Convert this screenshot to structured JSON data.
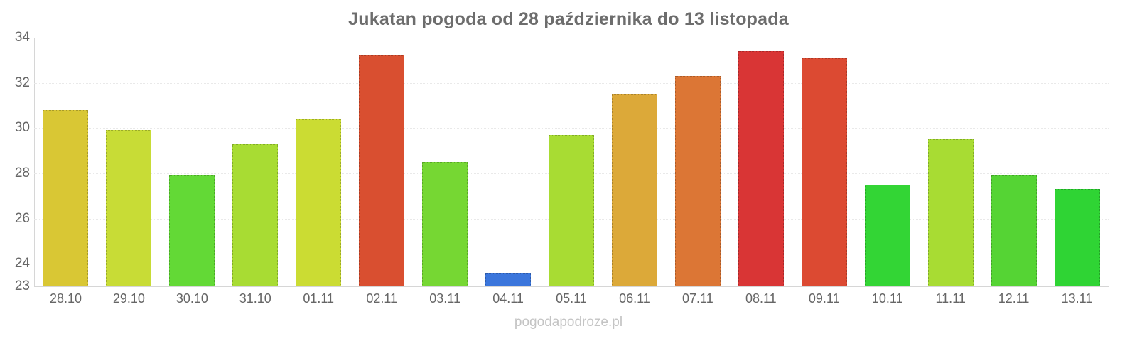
{
  "title": "Jukatan pogoda od 28 października do 13 listopada",
  "watermark": "pogodapodroze.pl",
  "chart_data": {
    "type": "bar",
    "title": "Jukatan pogoda od 28 października do 13 listopada",
    "categories": [
      "28.10",
      "29.10",
      "30.10",
      "31.10",
      "01.11",
      "02.11",
      "03.11",
      "04.11",
      "05.11",
      "06.11",
      "07.11",
      "08.11",
      "09.11",
      "10.11",
      "11.11",
      "12.11",
      "13.11"
    ],
    "values": [
      30.8,
      29.9,
      27.9,
      29.3,
      30.4,
      33.2,
      28.5,
      23.6,
      29.7,
      31.5,
      32.3,
      33.4,
      33.1,
      27.5,
      29.5,
      27.9,
      27.3
    ],
    "bar_colors": [
      "#d9c734",
      "#c8dc36",
      "#63d936",
      "#a8dc33",
      "#cbdc33",
      "#d94f30",
      "#76d733",
      "#3b76dc",
      "#a8dc33",
      "#dca939",
      "#dc7635",
      "#d93535",
      "#dc4a32",
      "#33d535",
      "#a8dc33",
      "#55d434",
      "#2fd434"
    ],
    "xlabel": "",
    "ylabel": "",
    "ylim": [
      23,
      34
    ],
    "yticks": [
      23,
      24,
      26,
      28,
      30,
      32,
      34
    ],
    "grid": true,
    "legend": false,
    "colors": {
      "title_text": "#6d6d6d",
      "axis_text": "#666666",
      "gridline": "#e9e9e9",
      "axis_line": "#d6d6d6",
      "watermark_text": "#c4c4c4",
      "background": "#ffffff"
    }
  }
}
